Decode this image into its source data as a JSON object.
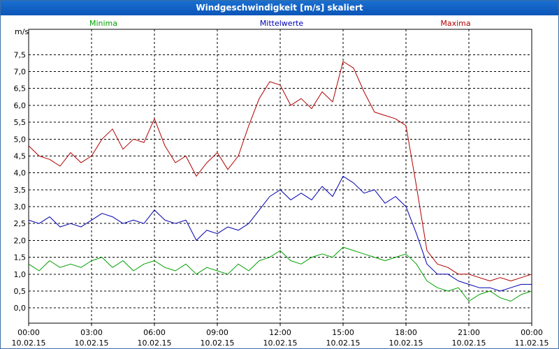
{
  "window": {
    "title": "Windgeschwindigkeit [m/s] skaliert"
  },
  "chart_data": {
    "type": "line",
    "title": "Windgeschwindigkeit [m/s] skaliert",
    "ylabel": "m/s",
    "ylim": [
      -0.45,
      8.25
    ],
    "yticks": [
      {
        "value": 0.0,
        "label": "0,0"
      },
      {
        "value": 0.5,
        "label": "0,5"
      },
      {
        "value": 1.0,
        "label": "1,0"
      },
      {
        "value": 1.5,
        "label": "1,5"
      },
      {
        "value": 2.0,
        "label": "2,0"
      },
      {
        "value": 2.5,
        "label": "2,5"
      },
      {
        "value": 3.0,
        "label": "3,0"
      },
      {
        "value": 3.5,
        "label": "3,5"
      },
      {
        "value": 4.0,
        "label": "4,0"
      },
      {
        "value": 4.5,
        "label": "4,5"
      },
      {
        "value": 5.0,
        "label": "5,0"
      },
      {
        "value": 5.5,
        "label": "5,5"
      },
      {
        "value": 6.0,
        "label": "6,0"
      },
      {
        "value": 6.5,
        "label": "6,5"
      },
      {
        "value": 7.0,
        "label": "7,0"
      },
      {
        "value": 7.5,
        "label": "7,5"
      }
    ],
    "xlim": [
      0,
      24
    ],
    "xticks": [
      {
        "value": 0,
        "time": "00:00",
        "date": "10.02.15"
      },
      {
        "value": 3,
        "time": "03:00",
        "date": "10.02.15"
      },
      {
        "value": 6,
        "time": "06:00",
        "date": "10.02.15"
      },
      {
        "value": 9,
        "time": "09:00",
        "date": "10.02.15"
      },
      {
        "value": 12,
        "time": "12:00",
        "date": "10.02.15"
      },
      {
        "value": 15,
        "time": "15:00",
        "date": "10.02.15"
      },
      {
        "value": 18,
        "time": "18:00",
        "date": "10.02.15"
      },
      {
        "value": 21,
        "time": "21:00",
        "date": "10.02.15"
      },
      {
        "value": 24,
        "time": "00:00",
        "date": "11.02.15"
      }
    ],
    "grid": true,
    "legend_position": "top",
    "series": [
      {
        "name": "Minima",
        "color": "#00a000",
        "x": [
          0,
          0.5,
          1,
          1.5,
          2,
          2.5,
          3,
          3.5,
          4,
          4.5,
          5,
          5.5,
          6,
          6.5,
          7,
          7.5,
          8,
          8.5,
          9,
          9.5,
          10,
          10.5,
          11,
          11.5,
          12,
          12.5,
          13,
          13.5,
          14,
          14.5,
          15,
          15.5,
          16,
          16.5,
          17,
          17.5,
          18,
          18.5,
          19,
          19.5,
          20,
          20.5,
          21,
          21.5,
          22,
          22.5,
          23,
          23.5,
          24
        ],
        "y": [
          1.3,
          1.1,
          1.4,
          1.2,
          1.3,
          1.2,
          1.4,
          1.5,
          1.2,
          1.4,
          1.1,
          1.3,
          1.4,
          1.2,
          1.1,
          1.3,
          1.0,
          1.2,
          1.1,
          1.0,
          1.3,
          1.1,
          1.4,
          1.5,
          1.7,
          1.4,
          1.3,
          1.5,
          1.6,
          1.5,
          1.8,
          1.7,
          1.6,
          1.5,
          1.4,
          1.5,
          1.6,
          1.3,
          0.8,
          0.6,
          0.5,
          0.6,
          0.2,
          0.4,
          0.5,
          0.3,
          0.2,
          0.4,
          0.5
        ]
      },
      {
        "name": "Mittelwerte",
        "color": "#0000b0",
        "x": [
          0,
          0.5,
          1,
          1.5,
          2,
          2.5,
          3,
          3.5,
          4,
          4.5,
          5,
          5.5,
          6,
          6.5,
          7,
          7.5,
          8,
          8.5,
          9,
          9.5,
          10,
          10.5,
          11,
          11.5,
          12,
          12.5,
          13,
          13.5,
          14,
          14.5,
          15,
          15.5,
          16,
          16.5,
          17,
          17.5,
          18,
          18.5,
          19,
          19.5,
          20,
          20.5,
          21,
          21.5,
          22,
          22.5,
          23,
          23.5,
          24
        ],
        "y": [
          2.6,
          2.5,
          2.7,
          2.4,
          2.5,
          2.4,
          2.6,
          2.8,
          2.7,
          2.5,
          2.6,
          2.5,
          2.9,
          2.6,
          2.5,
          2.6,
          2.0,
          2.3,
          2.2,
          2.4,
          2.3,
          2.5,
          2.9,
          3.3,
          3.5,
          3.2,
          3.4,
          3.2,
          3.6,
          3.3,
          3.9,
          3.7,
          3.4,
          3.5,
          3.1,
          3.3,
          3.0,
          2.2,
          1.3,
          1.0,
          1.0,
          0.8,
          0.7,
          0.6,
          0.6,
          0.5,
          0.6,
          0.7,
          0.7
        ]
      },
      {
        "name": "Maxima",
        "color": "#b00000",
        "x": [
          0,
          0.5,
          1,
          1.5,
          2,
          2.5,
          3,
          3.5,
          4,
          4.5,
          5,
          5.5,
          6,
          6.5,
          7,
          7.5,
          8,
          8.5,
          9,
          9.5,
          10,
          10.5,
          11,
          11.5,
          12,
          12.5,
          13,
          13.5,
          14,
          14.5,
          15,
          15.5,
          16,
          16.5,
          17,
          17.5,
          18,
          18.5,
          19,
          19.5,
          20,
          20.5,
          21,
          21.5,
          22,
          22.5,
          23,
          23.5,
          24
        ],
        "y": [
          4.8,
          4.5,
          4.4,
          4.2,
          4.6,
          4.3,
          4.5,
          5.0,
          5.3,
          4.7,
          5.0,
          4.9,
          5.6,
          4.8,
          4.3,
          4.5,
          3.9,
          4.3,
          4.6,
          4.1,
          4.5,
          5.4,
          6.2,
          6.7,
          6.6,
          6.0,
          6.2,
          5.9,
          6.4,
          6.1,
          7.3,
          7.1,
          6.4,
          5.8,
          5.7,
          5.6,
          5.4,
          3.6,
          1.7,
          1.3,
          1.2,
          1.0,
          1.0,
          0.9,
          0.8,
          0.9,
          0.8,
          0.9,
          1.0
        ]
      }
    ]
  }
}
